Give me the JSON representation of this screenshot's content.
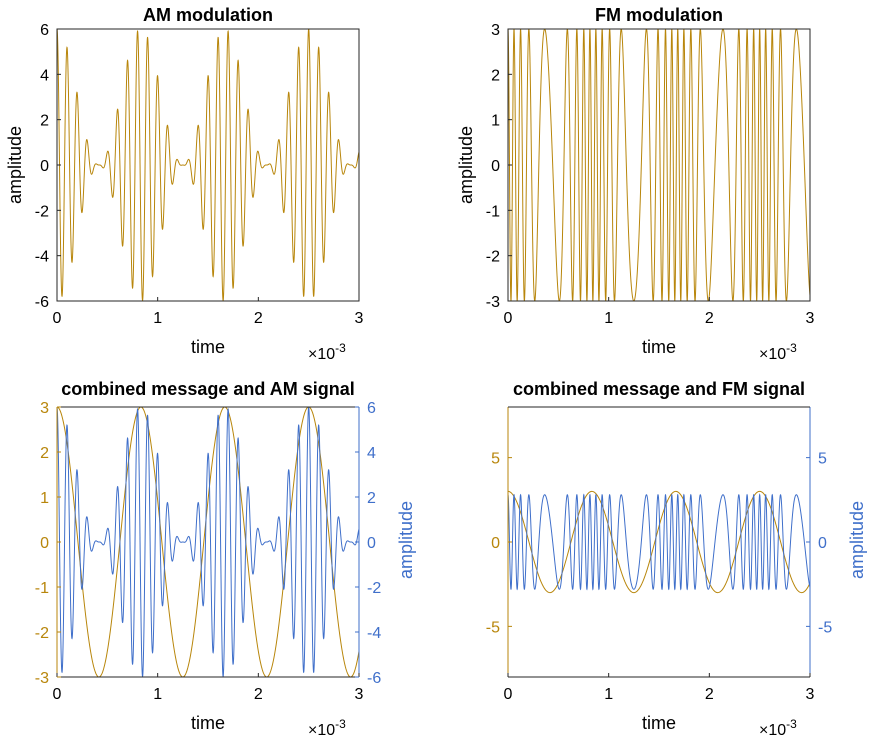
{
  "colors": {
    "message": "#B8860B",
    "signal_blue": "#3F6FCA",
    "axis": "#262626"
  },
  "chart_data": [
    {
      "type": "line",
      "title": "AM modulation",
      "xlabel": "time",
      "ylabel": "amplitude",
      "x_exponent": "×10",
      "x_exponent_power": "-3",
      "xlim": [
        0,
        0.003
      ],
      "ylim": [
        -6,
        6
      ],
      "x_ticks": [
        {
          "v": 0,
          "t": "0"
        },
        {
          "v": 0.001,
          "t": "1"
        },
        {
          "v": 0.002,
          "t": "2"
        },
        {
          "v": 0.003,
          "t": "3"
        }
      ],
      "y_ticks": [
        {
          "v": -6,
          "t": "-6"
        },
        {
          "v": -4,
          "t": "-4"
        },
        {
          "v": -2,
          "t": "-2"
        },
        {
          "v": 0,
          "t": "0"
        },
        {
          "v": 2,
          "t": "2"
        },
        {
          "v": 4,
          "t": "4"
        },
        {
          "v": 6,
          "t": "6"
        }
      ],
      "series": [
        {
          "kind": "am",
          "message_amplitude": 3,
          "message_freq_hz": 1200,
          "carrier_freq_hz": 10000,
          "peak": 6,
          "sample_count": 3000
        }
      ]
    },
    {
      "type": "line",
      "title": "FM modulation",
      "xlabel": "time",
      "ylabel": "amplitude",
      "x_exponent": "×10",
      "x_exponent_power": "-3",
      "xlim": [
        0,
        0.003
      ],
      "ylim": [
        -3,
        3
      ],
      "x_ticks": [
        {
          "v": 0,
          "t": "0"
        },
        {
          "v": 0.001,
          "t": "1"
        },
        {
          "v": 0.002,
          "t": "2"
        },
        {
          "v": 0.003,
          "t": "3"
        }
      ],
      "y_ticks": [
        {
          "v": -3,
          "t": "-3"
        },
        {
          "v": -2,
          "t": "-2"
        },
        {
          "v": -1,
          "t": "-1"
        },
        {
          "v": 0,
          "t": "0"
        },
        {
          "v": 1,
          "t": "1"
        },
        {
          "v": 2,
          "t": "2"
        },
        {
          "v": 3,
          "t": "3"
        }
      ],
      "series": [
        {
          "kind": "fm",
          "amplitude": 3,
          "center_freq_hz": 10000,
          "deviation_hz": 7000,
          "message_freq_hz": 1200,
          "sample_count": 3000
        }
      ]
    },
    {
      "type": "line",
      "title": "combined message and AM signal",
      "xlabel": "time",
      "ylabel_right": "amplitude",
      "x_exponent": "×10",
      "x_exponent_power": "-3",
      "xlim": [
        0,
        0.003
      ],
      "ylim_left": [
        -3,
        3
      ],
      "ylim_right": [
        -6,
        6
      ],
      "x_ticks": [
        {
          "v": 0,
          "t": "0"
        },
        {
          "v": 0.001,
          "t": "1"
        },
        {
          "v": 0.002,
          "t": "2"
        },
        {
          "v": 0.003,
          "t": "3"
        }
      ],
      "y_ticks_left": [
        {
          "v": -3,
          "t": "-3"
        },
        {
          "v": -2,
          "t": "-2"
        },
        {
          "v": -1,
          "t": "-1"
        },
        {
          "v": 0,
          "t": "0"
        },
        {
          "v": 1,
          "t": "1"
        },
        {
          "v": 2,
          "t": "2"
        },
        {
          "v": 3,
          "t": "3"
        }
      ],
      "y_ticks_right": [
        {
          "v": -6,
          "t": "-6"
        },
        {
          "v": -4,
          "t": "-4"
        },
        {
          "v": -2,
          "t": "-2"
        },
        {
          "v": 0,
          "t": "0"
        },
        {
          "v": 2,
          "t": "2"
        },
        {
          "v": 4,
          "t": "4"
        },
        {
          "v": 6,
          "t": "6"
        }
      ],
      "series": [
        {
          "kind": "message",
          "axis": "left",
          "amplitude": 3,
          "freq_hz": 1200,
          "sample_count": 600
        },
        {
          "kind": "am",
          "axis": "right",
          "message_amplitude": 3,
          "message_freq_hz": 1200,
          "carrier_freq_hz": 10000,
          "peak": 6,
          "sample_count": 3000
        }
      ]
    },
    {
      "type": "line",
      "title": "combined message and FM signal",
      "xlabel": "time",
      "ylabel_right": "amplitude",
      "x_exponent": "×10",
      "x_exponent_power": "-3",
      "xlim": [
        0,
        0.003
      ],
      "ylim_left": [
        -8,
        8
      ],
      "ylim_right": [
        -8,
        8
      ],
      "x_ticks": [
        {
          "v": 0,
          "t": "0"
        },
        {
          "v": 0.001,
          "t": "1"
        },
        {
          "v": 0.002,
          "t": "2"
        },
        {
          "v": 0.003,
          "t": "3"
        }
      ],
      "y_ticks_left": [
        {
          "v": -5,
          "t": "-5"
        },
        {
          "v": 0,
          "t": "0"
        },
        {
          "v": 5,
          "t": "5"
        }
      ],
      "y_ticks_right": [
        {
          "v": -5,
          "t": "-5"
        },
        {
          "v": 0,
          "t": "0"
        },
        {
          "v": 5,
          "t": "5"
        }
      ],
      "series": [
        {
          "kind": "message",
          "axis": "left",
          "amplitude": 3,
          "freq_hz": 1200,
          "sample_count": 600
        },
        {
          "kind": "fm",
          "axis": "right",
          "amplitude": 2.8,
          "center_freq_hz": 10000,
          "deviation_hz": 7000,
          "message_freq_hz": 1200,
          "sample_count": 3000
        }
      ]
    }
  ]
}
